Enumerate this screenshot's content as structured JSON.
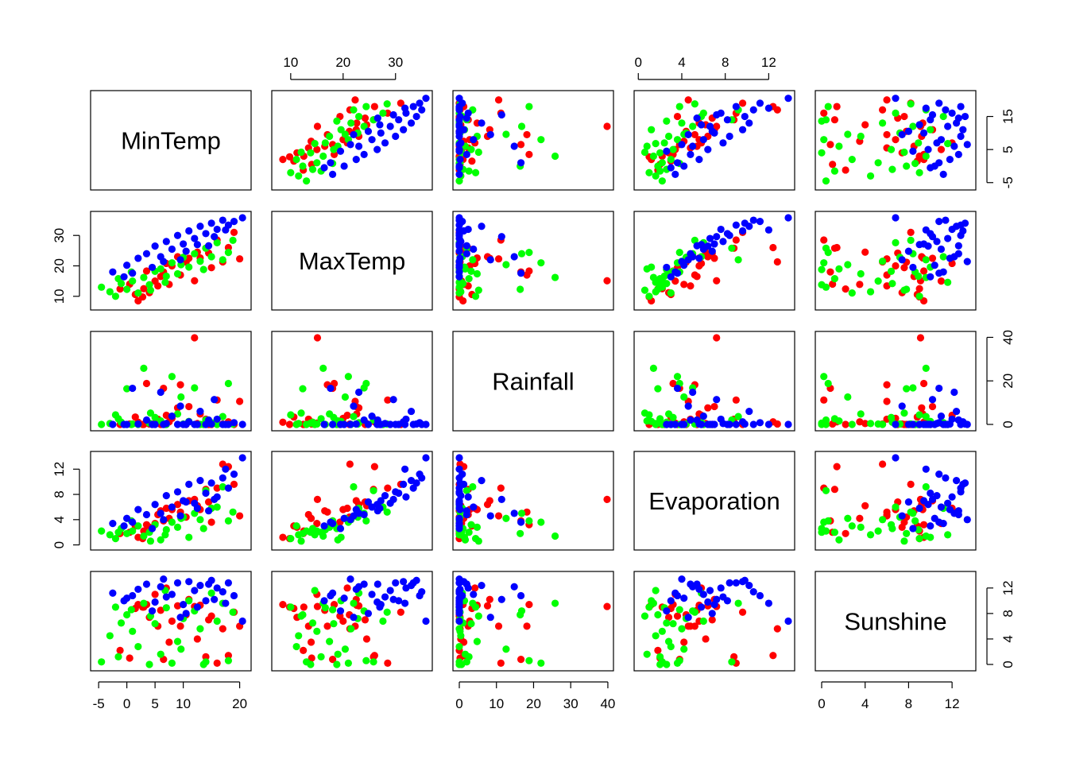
{
  "chart_data": {
    "type": "scatter",
    "kind": "scatterplot-matrix",
    "variables": [
      {
        "name": "MinTemp",
        "range": [
          -5.3,
          20.9
        ],
        "ticks": [
          -5,
          0,
          5,
          10,
          20
        ],
        "tick_labels": [
          "-5",
          "0",
          "5",
          "10",
          "20"
        ],
        "right_ticks": [
          -5,
          5,
          15
        ],
        "right_tick_labels": [
          "-5",
          "5",
          "15"
        ]
      },
      {
        "name": "MaxTemp",
        "range": [
          7.6,
          35.8
        ],
        "ticks": [
          10,
          20,
          30
        ],
        "tick_labels": [
          "10",
          "20",
          "30"
        ]
      },
      {
        "name": "Rainfall",
        "range": [
          0,
          39.8
        ],
        "ticks": [
          0,
          10,
          20,
          30,
          40
        ],
        "tick_labels": [
          "0",
          "10",
          "20",
          "30",
          "40"
        ],
        "right_ticks": [
          0,
          20,
          40
        ],
        "right_tick_labels": [
          "0",
          "20",
          "40"
        ]
      },
      {
        "name": "Evaporation",
        "range": [
          0.2,
          13.8
        ],
        "ticks": [
          0,
          4,
          8,
          12
        ],
        "tick_labels": [
          "0",
          "4",
          "8",
          "12"
        ]
      },
      {
        "name": "Sunshine",
        "range": [
          0,
          13.6
        ],
        "ticks": [
          0,
          4,
          8,
          12
        ],
        "tick_labels": [
          "0",
          "4",
          "8",
          "12"
        ]
      }
    ],
    "groups": [
      {
        "color": "#FF0000"
      },
      {
        "color": "#00FF00"
      },
      {
        "color": "#0000FF"
      }
    ],
    "points": {
      "red": [
        [
          -1.2,
          12.4,
          0.0,
          1.8,
          2.2
        ],
        [
          0.5,
          14.0,
          0.2,
          2.0,
          1.0
        ],
        [
          2.0,
          8.5,
          1.0,
          1.2,
          9.4
        ],
        [
          1.5,
          10.6,
          3.4,
          3.0,
          8.8
        ],
        [
          2.8,
          9.8,
          0.0,
          1.0,
          9.0
        ],
        [
          4.0,
          11.2,
          0.2,
          2.8,
          7.4
        ],
        [
          5.5,
          13.4,
          2.4,
          4.8,
          6.0
        ],
        [
          3.5,
          18.3,
          18.8,
          3.2,
          9.4
        ],
        [
          6.0,
          16.5,
          0.0,
          5.4,
          8.5
        ],
        [
          7.5,
          13.9,
          1.2,
          4.2,
          3.5
        ],
        [
          8.0,
          20.0,
          2.8,
          5.6,
          6.8
        ],
        [
          9.0,
          23.0,
          7.6,
          6.4,
          9.2
        ],
        [
          10.5,
          21.2,
          0.0,
          4.4,
          7.8
        ],
        [
          12.0,
          15.1,
          39.8,
          7.2,
          9.1
        ],
        [
          12.5,
          24.5,
          0.4,
          6.2,
          4.0
        ],
        [
          13.0,
          22.6,
          4.8,
          5.6,
          9.3
        ],
        [
          14.0,
          25.8,
          2.4,
          8.8,
          1.2
        ],
        [
          15.0,
          19.4,
          0.0,
          3.6,
          7.6
        ],
        [
          16.0,
          28.5,
          11.2,
          9.0,
          0.2
        ],
        [
          17.0,
          21.3,
          0.2,
          12.8,
          5.6
        ],
        [
          18.0,
          26.0,
          1.2,
          12.4,
          1.4
        ],
        [
          19.0,
          31.0,
          0.0,
          9.6,
          8.2
        ],
        [
          20.0,
          22.3,
          10.6,
          4.6,
          6.0
        ],
        [
          6.5,
          18.0,
          16.6,
          3.8,
          0.8
        ],
        [
          9.5,
          17.0,
          18.2,
          5.2,
          6.0
        ],
        [
          11.0,
          22.5,
          8.2,
          7.0,
          10.2
        ],
        [
          3.0,
          12.5,
          0.0,
          2.2,
          9.0
        ],
        [
          5.0,
          15.0,
          0.6,
          3.4,
          11.0
        ],
        [
          7.0,
          20.8,
          4.2,
          5.8,
          12.0
        ],
        [
          14.5,
          24.2,
          0.0,
          6.8,
          7.0
        ]
      ],
      "green": [
        [
          -4.5,
          13.0,
          0.0,
          2.2,
          0.4
        ],
        [
          -3.0,
          11.5,
          0.4,
          1.6,
          4.5
        ],
        [
          -2.0,
          10.0,
          4.4,
          1.0,
          9.0
        ],
        [
          -1.0,
          14.2,
          1.0,
          2.6,
          6.5
        ],
        [
          0.0,
          12.3,
          16.4,
          1.8,
          7.8
        ],
        [
          1.0,
          15.0,
          0.2,
          2.2,
          5.2
        ],
        [
          2.0,
          11.1,
          0.0,
          3.0,
          2.8
        ],
        [
          3.0,
          16.2,
          25.8,
          1.4,
          9.6
        ],
        [
          4.0,
          13.8,
          0.6,
          2.0,
          0.0
        ],
        [
          5.0,
          18.2,
          3.2,
          3.2,
          6.4
        ],
        [
          6.0,
          19.0,
          1.6,
          0.8,
          1.6
        ],
        [
          7.0,
          16.6,
          0.0,
          2.4,
          8.9
        ],
        [
          8.0,
          21.0,
          22.0,
          3.6,
          0.2
        ],
        [
          9.0,
          17.4,
          4.8,
          2.8,
          3.6
        ],
        [
          10.0,
          22.8,
          0.2,
          4.4,
          7.2
        ],
        [
          11.0,
          19.6,
          1.4,
          1.2,
          10.0
        ],
        [
          12.0,
          24.0,
          16.8,
          5.0,
          8.4
        ],
        [
          13.0,
          21.5,
          0.0,
          4.0,
          5.6
        ],
        [
          14.0,
          25.8,
          2.0,
          8.6,
          0.4
        ],
        [
          15.0,
          23.0,
          0.8,
          5.8,
          11.2
        ],
        [
          16.0,
          27.6,
          0.0,
          6.0,
          6.8
        ],
        [
          17.0,
          22.0,
          3.6,
          9.2,
          9.6
        ],
        [
          18.0,
          24.4,
          18.8,
          3.8,
          0.6
        ],
        [
          18.8,
          28.4,
          0.2,
          5.2,
          8.2
        ],
        [
          -1.5,
          15.8,
          2.6,
          2.0,
          1.2
        ],
        [
          0.8,
          18.0,
          0.0,
          3.8,
          8.6
        ],
        [
          4.2,
          12.0,
          5.2,
          0.6,
          7.6
        ],
        [
          6.8,
          14.6,
          0.0,
          1.6,
          11.6
        ],
        [
          9.6,
          20.4,
          12.6,
          4.2,
          2.4
        ],
        [
          13.6,
          18.8,
          0.0,
          2.6,
          0.0
        ]
      ],
      "blue": [
        [
          -2.5,
          18.0,
          0.0,
          3.4,
          11.2
        ],
        [
          0.0,
          20.2,
          0.0,
          4.2,
          10.4
        ],
        [
          2.0,
          22.5,
          0.2,
          5.6,
          11.8
        ],
        [
          3.5,
          24.0,
          2.0,
          4.8,
          12.6
        ],
        [
          5.0,
          26.5,
          0.0,
          6.4,
          9.8
        ],
        [
          6.0,
          23.0,
          14.8,
          5.0,
          12.2
        ],
        [
          7.0,
          28.0,
          0.4,
          7.8,
          10.6
        ],
        [
          8.0,
          25.5,
          3.8,
          6.0,
          11.0
        ],
        [
          9.0,
          30.0,
          0.0,
          8.4,
          12.8
        ],
        [
          10.0,
          27.2,
          0.0,
          7.0,
          9.4
        ],
        [
          11.0,
          31.5,
          1.2,
          9.6,
          13.0
        ],
        [
          12.0,
          29.0,
          0.0,
          6.6,
          11.6
        ],
        [
          13.0,
          33.0,
          6.0,
          10.2,
          12.4
        ],
        [
          14.0,
          30.6,
          0.0,
          8.2,
          10.0
        ],
        [
          15.0,
          34.0,
          0.2,
          9.8,
          13.2
        ],
        [
          16.0,
          32.0,
          2.4,
          7.6,
          12.0
        ],
        [
          17.0,
          35.0,
          0.0,
          10.6,
          11.4
        ],
        [
          18.0,
          33.4,
          0.0,
          9.0,
          12.8
        ],
        [
          19.0,
          34.6,
          0.8,
          11.2,
          10.8
        ],
        [
          20.5,
          35.8,
          0.0,
          13.8,
          6.8
        ],
        [
          4.5,
          19.5,
          0.0,
          2.6,
          8.4
        ],
        [
          9.5,
          22.0,
          8.4,
          4.6,
          7.4
        ],
        [
          12.5,
          27.0,
          0.0,
          5.8,
          9.0
        ],
        [
          15.5,
          29.6,
          11.4,
          7.2,
          10.2
        ],
        [
          -0.5,
          16.4,
          0.0,
          3.0,
          10.0
        ],
        [
          6.5,
          21.4,
          0.0,
          4.0,
          13.4
        ],
        [
          10.5,
          24.8,
          0.0,
          6.8,
          8.0
        ],
        [
          14.5,
          26.6,
          2.0,
          5.4,
          12.6
        ],
        [
          17.5,
          31.8,
          0.0,
          12.0,
          9.6
        ],
        [
          1.0,
          17.6,
          16.6,
          3.6,
          10.8
        ]
      ]
    }
  }
}
